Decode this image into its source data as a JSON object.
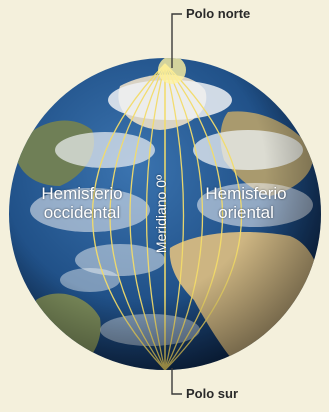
{
  "labels": {
    "north_pole": "Polo norte",
    "south_pole": "Polo sur",
    "western_hemisphere_line1": "Hemisferio",
    "western_hemisphere_line2": "occidental",
    "eastern_hemisphere_line1": "Hemisferio",
    "eastern_hemisphere_line2": "oriental",
    "prime_meridian": "Meridiano 0º"
  },
  "colors": {
    "background": "#f4f0dc",
    "ocean": "#1f4f86",
    "land": "#c9b88a",
    "clouds": "#eef1f4",
    "meridian_lines": "#f3dc6a",
    "leader_lines": "#3a3a3a"
  }
}
